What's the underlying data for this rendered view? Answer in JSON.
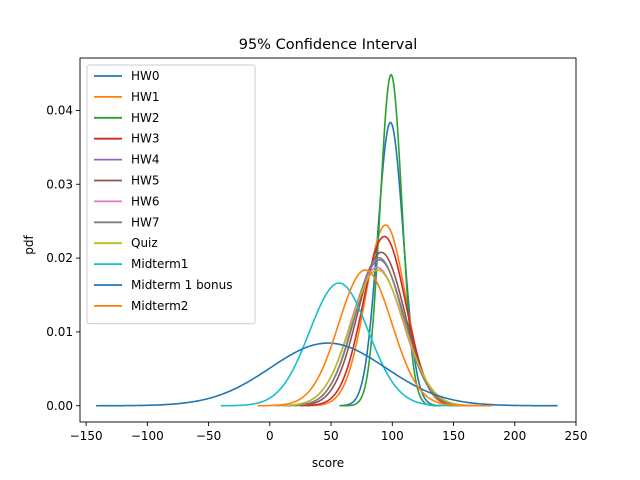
{
  "chart_data": {
    "type": "line",
    "title": "95% Confidence Interval",
    "xlabel": "score",
    "ylabel": "pdf",
    "xlim": [
      -155,
      250
    ],
    "ylim": [
      -0.0022,
      0.0471
    ],
    "xticks": [
      -150,
      -100,
      -50,
      0,
      50,
      100,
      150,
      200,
      250
    ],
    "xtick_labels": [
      "−150",
      "−100",
      "−50",
      "0",
      "50",
      "100",
      "150",
      "200",
      "250"
    ],
    "yticks": [
      0.0,
      0.01,
      0.02,
      0.03,
      0.04
    ],
    "ytick_labels": [
      "0.00",
      "0.01",
      "0.02",
      "0.03",
      "0.04"
    ],
    "grid": false,
    "legend_position": "upper-left",
    "series": [
      {
        "name": "HW0",
        "color": "#1f77b4",
        "mean": 98.5,
        "sd": 10.4,
        "x_range": [
          57,
          140
        ]
      },
      {
        "name": "HW1",
        "color": "#ff7f0e",
        "mean": 94.5,
        "sd": 16.3,
        "x_range": [
          30,
          160
        ]
      },
      {
        "name": "HW2",
        "color": "#2ca02c",
        "mean": 99.0,
        "sd": 8.9,
        "x_range": [
          57,
          140
        ]
      },
      {
        "name": "HW3",
        "color": "#d62728",
        "mean": 93.5,
        "sd": 17.4,
        "x_range": [
          25,
          165
        ]
      },
      {
        "name": "HW4",
        "color": "#9467bd",
        "mean": 89.5,
        "sd": 20.2,
        "x_range": [
          15,
          165
        ]
      },
      {
        "name": "HW5",
        "color": "#8c564b",
        "mean": 91.0,
        "sd": 19.2,
        "x_range": [
          20,
          165
        ]
      },
      {
        "name": "HW6",
        "color": "#e377c2",
        "mean": 87.5,
        "sd": 21.3,
        "x_range": [
          10,
          170
        ]
      },
      {
        "name": "HW7",
        "color": "#7f7f7f",
        "mean": 89.0,
        "sd": 19.9,
        "x_range": [
          10,
          170
        ]
      },
      {
        "name": "Quiz",
        "color": "#bcbd22",
        "mean": 88.0,
        "sd": 21.7,
        "x_range": [
          5,
          170
        ]
      },
      {
        "name": "Midterm1",
        "color": "#17becf",
        "mean": 56.5,
        "sd": 24.0,
        "x_range": [
          -40,
          155
        ]
      },
      {
        "name": "Midterm 1 bonus",
        "color": "#1f77b4",
        "mean": 47.5,
        "sd": 47.0,
        "x_range": [
          -142,
          235
        ]
      },
      {
        "name": "Midterm2",
        "color": "#ff7f0e",
        "mean": 78.0,
        "sd": 21.7,
        "x_range": [
          -10,
          182
        ]
      }
    ]
  }
}
